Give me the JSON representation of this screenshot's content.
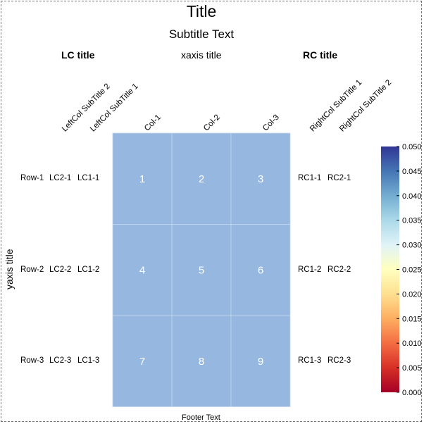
{
  "chart_data": {
    "type": "heatmap",
    "title": "Title",
    "subtitle": "Subtitle Text",
    "xlabel": "xaxis title",
    "ylabel": "yaxis title",
    "footer": "Footer Text",
    "columns": [
      "Col-1",
      "Col-2",
      "Col-3"
    ],
    "rows": [
      "Row-1",
      "Row-2",
      "Row-3"
    ],
    "cells": [
      [
        1,
        2,
        3
      ],
      [
        4,
        5,
        6
      ],
      [
        7,
        8,
        9
      ]
    ],
    "cell_color": "#95b7e0",
    "left_columns": {
      "title": "LC title",
      "subtitles": [
        "LeftCol SubTitle 2",
        "LeftCol SubTitle 1"
      ],
      "values": [
        [
          "LC2-1",
          "LC1-1"
        ],
        [
          "LC2-2",
          "LC1-2"
        ],
        [
          "LC2-3",
          "LC1-3"
        ]
      ]
    },
    "right_columns": {
      "title": "RC title",
      "subtitles": [
        "RightCol SubTitle 1",
        "RightCol SubTitle 2"
      ],
      "values": [
        [
          "RC1-1",
          "RC2-1"
        ],
        [
          "RC1-2",
          "RC2-2"
        ],
        [
          "RC1-3",
          "RC2-3"
        ]
      ]
    },
    "colorbar": {
      "range": [
        0,
        0.05
      ],
      "ticks": [
        "0.000",
        "0.005",
        "0.010",
        "0.015",
        "0.020",
        "0.025",
        "0.030",
        "0.035",
        "0.040",
        "0.045",
        "0.050"
      ],
      "colors": [
        "#a50026",
        "#d73027",
        "#f46d43",
        "#fdae61",
        "#fee090",
        "#ffffbf",
        "#e0f3f8",
        "#abd9e9",
        "#74add1",
        "#4575b4",
        "#313695"
      ]
    }
  }
}
